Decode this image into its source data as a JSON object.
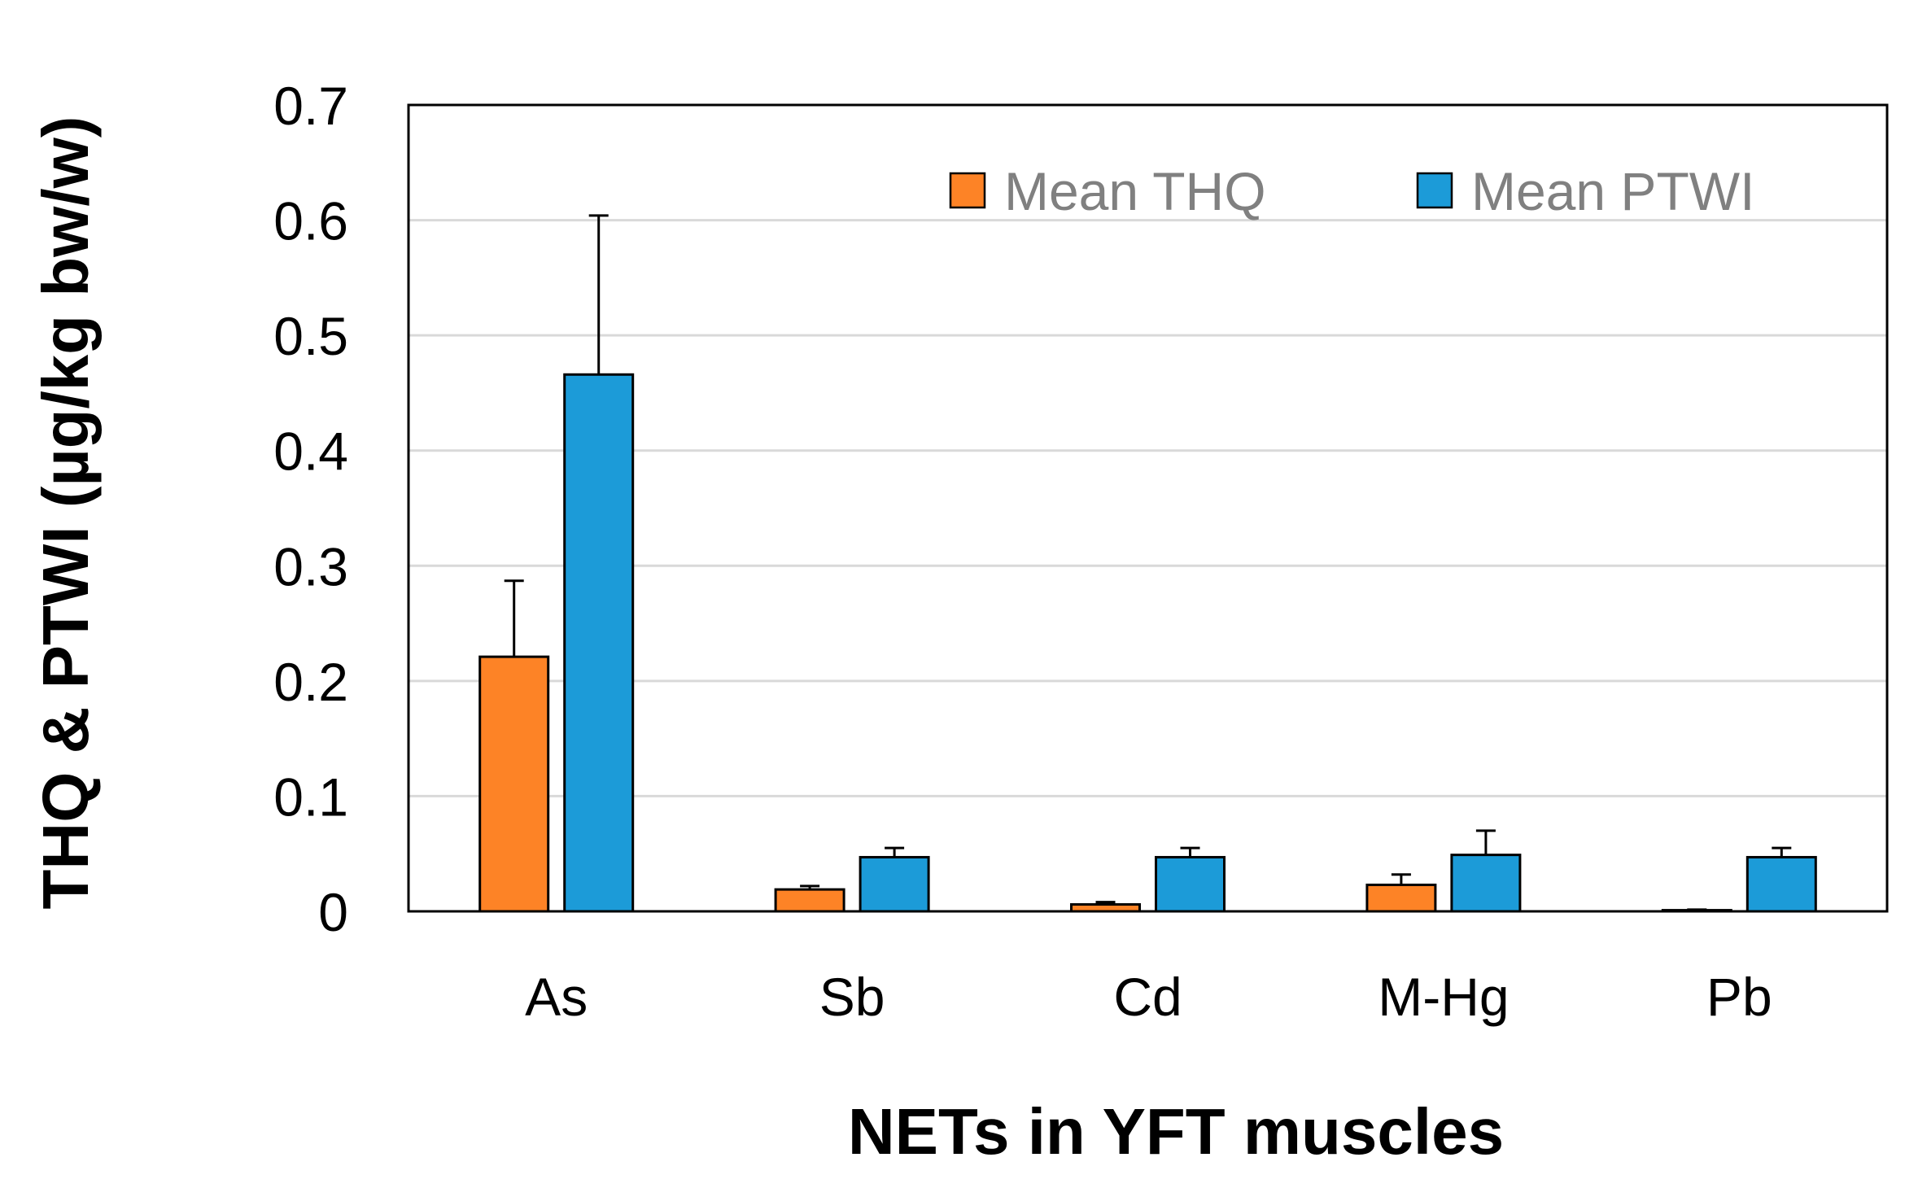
{
  "chart_data": {
    "type": "bar",
    "title": "",
    "xlabel": "NETs in YFT muscles",
    "ylabel": "THQ  & PTWI (µg/kg bw/w)",
    "categories": [
      "As",
      "Sb",
      "Cd",
      "M-Hg",
      "Pb"
    ],
    "ylim": [
      0,
      0.7
    ],
    "yticks": [
      0,
      0.1,
      0.2,
      0.3,
      0.4,
      0.5,
      0.6,
      0.7
    ],
    "ytick_labels": [
      "0",
      "0.1",
      "0.2",
      "0.3",
      "0.4",
      "0.5",
      "0.6",
      "0.7"
    ],
    "grid": true,
    "legend_position": "top-right",
    "series": [
      {
        "name": "Mean THQ",
        "color": "#fd8326",
        "values": [
          0.221,
          0.019,
          0.006,
          0.023,
          0.001
        ],
        "errors": [
          0.066,
          0.003,
          0.002,
          0.009,
          0.0005
        ]
      },
      {
        "name": "Mean PTWI",
        "color": "#1c9bd8",
        "values": [
          0.466,
          0.047,
          0.047,
          0.049,
          0.047
        ],
        "errors": [
          0.138,
          0.008,
          0.008,
          0.021,
          0.008
        ]
      }
    ]
  }
}
